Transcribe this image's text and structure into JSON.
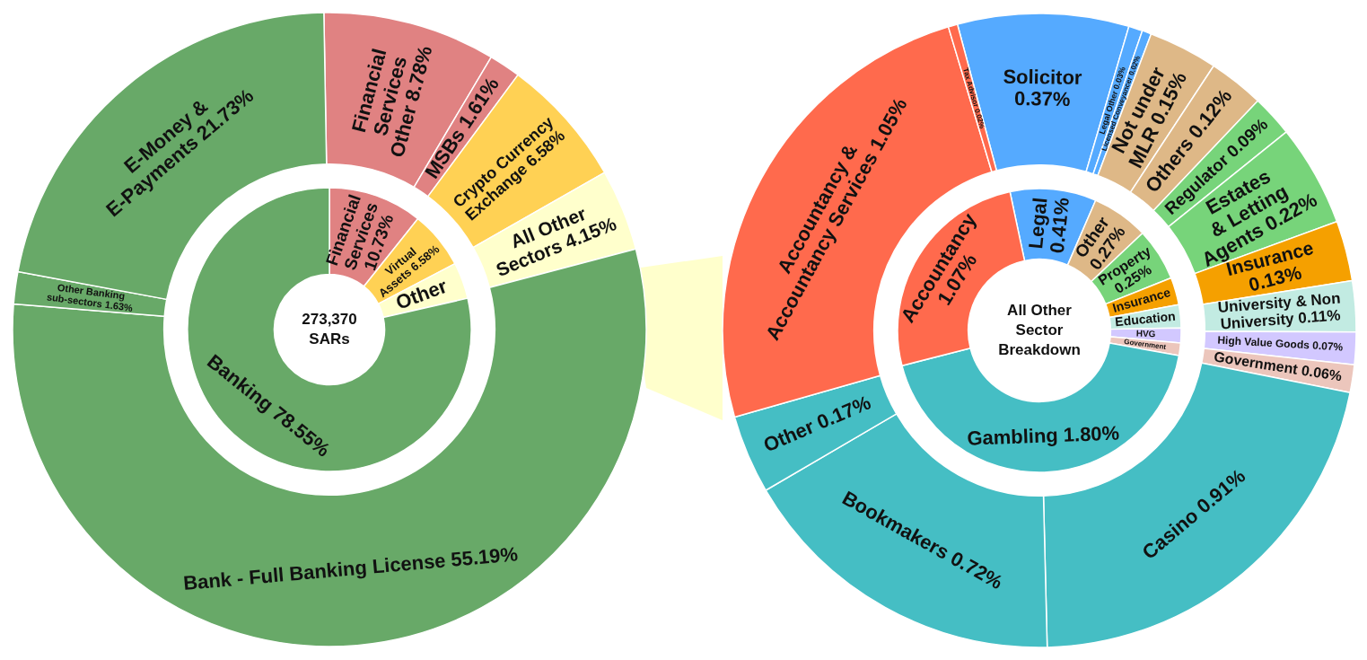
{
  "chart_data": [
    {
      "type": "donut",
      "categories": [
        "Financial Services",
        "Virtual Assets",
        "Other",
        "Banking"
      ],
      "values": [
        10.73,
        6.58,
        4.15,
        78.55
      ],
      "colors": [
        "#e08282",
        "#ffd154",
        "#ffffcc",
        "#68a968"
      ],
      "value_labels": [
        "10.73%",
        "6.58%",
        null,
        "78.55%"
      ],
      "annotations": [
        "273,370 SARs"
      ]
    },
    {
      "type": "donut",
      "categories": [
        "Financial Services Other",
        "MSBs",
        "Crypto Currency Exchange",
        "All Other Sectors",
        "Bank - Full Banking License",
        "Other Banking sub-sectors",
        "E-Money & E-Payments"
      ],
      "values": [
        8.78,
        1.61,
        6.58,
        4.15,
        55.19,
        1.63,
        21.73
      ],
      "colors": [
        "#e08282",
        "#e08282",
        "#ffd154",
        "#ffffcc",
        "#68a968",
        "#68a968",
        "#68a968"
      ],
      "value_labels": [
        "8.78%",
        "1.61%",
        "6.58%",
        "4.15%",
        "55.19%",
        "1.63%",
        "21.73%"
      ]
    },
    {
      "type": "donut",
      "categories": [
        "Legal",
        "Other",
        "Property",
        "Insurance",
        "Education",
        "HVG",
        "Government",
        "Gambling",
        "Accountancy"
      ],
      "values": [
        0.41,
        0.27,
        0.25,
        0.13,
        0.11,
        0.07,
        0.06,
        1.8,
        1.07
      ],
      "colors": [
        "#55aaff",
        "#deb887",
        "#77d47a",
        "#f5a000",
        "#c2ebe2",
        "#d2c8ff",
        "#ecc6bc",
        "#45bec4",
        "#ff6a4d"
      ],
      "value_labels": [
        "0.41%",
        "0.27%",
        "0.25%",
        null,
        null,
        null,
        null,
        "1.80%",
        "1.07%"
      ],
      "annotations": [
        "All Other Sector Breakdown"
      ]
    },
    {
      "type": "donut",
      "categories": [
        "Solicitor",
        "Legal Other",
        "Licensed Conveyancer",
        "Not under MLR",
        "Others",
        "Regulator",
        "Estates & Letting Agents",
        "Insurance",
        "University & Non University",
        "High Value Goods",
        "Government",
        "Casino",
        "Bookmakers",
        "Other",
        "Accountancy & Accountancy Services",
        "Tax Advisor"
      ],
      "values": [
        0.37,
        0.03,
        0.02,
        0.15,
        0.12,
        0.09,
        0.22,
        0.13,
        0.11,
        0.07,
        0.06,
        0.91,
        0.72,
        0.17,
        1.05,
        0.02
      ],
      "colors": [
        "#55aaff",
        "#55aaff",
        "#55aaff",
        "#deb887",
        "#deb887",
        "#77d47a",
        "#77d47a",
        "#f5a000",
        "#c2ebe2",
        "#d2c8ff",
        "#ecc6bc",
        "#45bec4",
        "#45bec4",
        "#45bec4",
        "#ff6a4d",
        "#ff6a4d"
      ],
      "value_labels": [
        "0.37%",
        "0.03%",
        "0.02%",
        "0.15%",
        "0.12%",
        "0.09%",
        "0.22%",
        "0.13%",
        "0.11%",
        "0.07%",
        "0.06%",
        "0.91%",
        "0.72%",
        "0.17%",
        "1.05%",
        "0.02%"
      ]
    }
  ]
}
